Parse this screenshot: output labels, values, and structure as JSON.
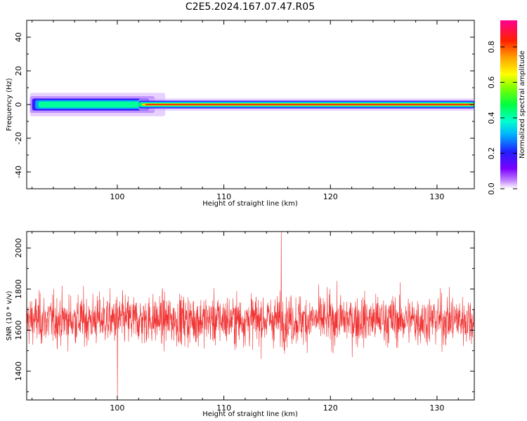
{
  "title": "C2E5.2024.167.07.47.R05",
  "chart_data": [
    {
      "type": "heatmap",
      "xlabel": "Height of straight line (km)",
      "ylabel": "Frequency (Hz)",
      "xlim": [
        91.5,
        133.5
      ],
      "ylim": [
        -50,
        50
      ],
      "xticks": [
        100,
        110,
        120,
        130
      ],
      "yticks": [
        -40,
        -20,
        0,
        20,
        40
      ],
      "colorbar": {
        "label": "Normalized spectral amplitude",
        "range": [
          0,
          0.95
        ],
        "ticks": [
          0.0,
          0.2,
          0.4,
          0.6,
          0.8
        ],
        "tick_labels": [
          "0.0",
          "0.2",
          "0.4",
          "0.6",
          "0.8"
        ],
        "colormap": "gist_rainbow_r"
      },
      "grid": false
    },
    {
      "type": "line",
      "xlabel": "Height of straight line (km)",
      "ylabel": "SNR (10 * v/v)",
      "xlim": [
        91.5,
        133.5
      ],
      "ylim": [
        1260,
        2080
      ],
      "xticks": [
        100,
        110,
        120,
        130
      ],
      "yticks": [
        1400,
        1600,
        1800,
        2000
      ],
      "series": [
        {
          "color": "#f03232",
          "mean": 1650,
          "spread": 85,
          "max": 2090,
          "min": 1270
        }
      ],
      "grid": false
    }
  ]
}
